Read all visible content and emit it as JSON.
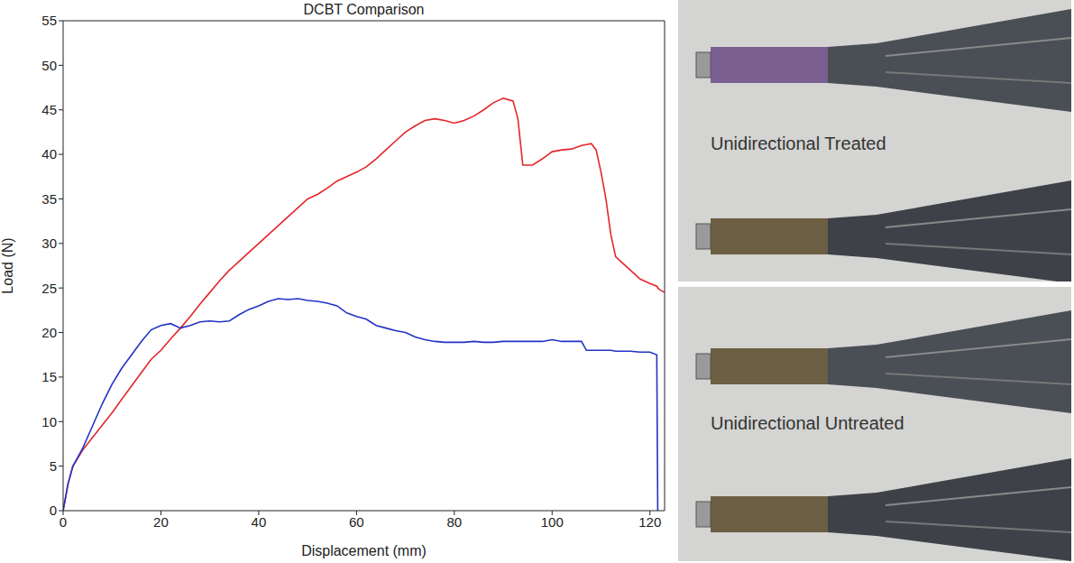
{
  "chart_data": {
    "type": "line",
    "title": "DCBT Comparison",
    "x_label": "Displacement (mm)",
    "y_label": "Load (N)",
    "xlim": [
      0,
      123
    ],
    "xticks": [
      0,
      20,
      40,
      60,
      80,
      100,
      120
    ],
    "ylim": [
      0,
      55
    ],
    "yticks": [
      0,
      5,
      10,
      15,
      20,
      25,
      30,
      35,
      40,
      45,
      50,
      55
    ],
    "grid": false,
    "x": [
      0,
      1,
      2,
      4,
      6,
      8,
      10,
      12,
      14,
      16,
      18,
      20,
      22,
      24,
      26,
      28,
      30,
      32,
      34,
      36,
      38,
      40,
      42,
      44,
      46,
      48,
      50,
      52,
      54,
      56,
      58,
      60,
      62,
      64,
      66,
      68,
      70,
      72,
      74,
      76,
      78,
      80,
      82,
      84,
      86,
      88,
      90,
      92,
      93,
      94,
      96,
      98,
      100,
      102,
      104,
      106,
      107,
      108,
      109,
      110,
      111,
      112,
      113,
      114,
      116,
      118,
      120,
      121.4,
      121.6,
      122,
      123
    ],
    "series": [
      {
        "color": "#e3262b",
        "values": [
          0,
          3,
          5,
          6.8,
          8.2,
          9.6,
          11,
          12.5,
          14,
          15.5,
          17,
          18,
          19.3,
          20.5,
          21.8,
          23.2,
          24.5,
          25.8,
          27,
          28,
          29,
          30,
          31,
          32,
          33,
          34,
          35,
          35.5,
          36.2,
          37,
          37.5,
          38,
          38.6,
          39.5,
          40.5,
          41.5,
          42.5,
          43.2,
          43.8,
          44,
          43.8,
          43.5,
          43.8,
          44.3,
          45,
          45.8,
          46.3,
          46,
          44,
          38.8,
          38.8,
          39.5,
          40.3,
          40.5,
          40.6,
          41,
          41.1,
          41.2,
          40.5,
          38,
          35,
          31,
          28.5,
          28,
          27,
          26,
          25.5,
          25.2,
          25,
          24.8,
          24.5
        ]
      },
      {
        "color": "#2233c4",
        "values": [
          0,
          3,
          5,
          7,
          9.5,
          12,
          14.2,
          16,
          17.5,
          19,
          20.3,
          20.8,
          21,
          20.5,
          20.8,
          21.2,
          21.3,
          21.2,
          21.3,
          22,
          22.6,
          23,
          23.5,
          23.8,
          23.7,
          23.8,
          23.6,
          23.5,
          23.3,
          23,
          22.2,
          21.8,
          21.5,
          20.8,
          20.5,
          20.2,
          20,
          19.5,
          19.2,
          19,
          18.9,
          18.9,
          18.9,
          19,
          18.9,
          18.9,
          19,
          19,
          19,
          19,
          19,
          19,
          19.2,
          19,
          19,
          19,
          18,
          18,
          18,
          18,
          18,
          18,
          17.9,
          17.9,
          17.9,
          17.8,
          17.8,
          17.5,
          0,
          null,
          null
        ]
      }
    ]
  },
  "photos": [
    {
      "label": "Unidirectional Treated"
    },
    {
      "label": "Unidirectional Untreated"
    }
  ]
}
